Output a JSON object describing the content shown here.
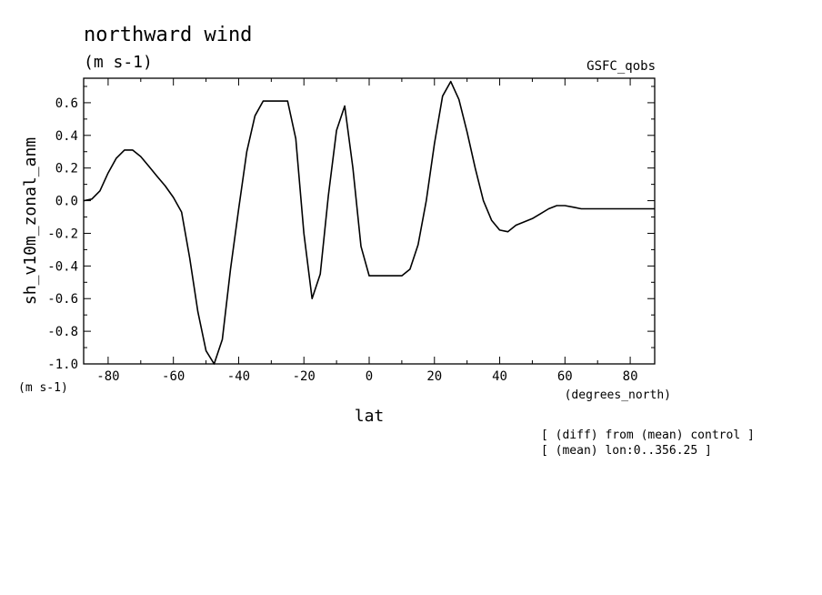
{
  "chart_data": {
    "type": "line",
    "title": "northward wind",
    "subtitle": "(m s-1)",
    "dataset_label": "GSFC_qobs",
    "xlabel": "lat",
    "xunits": "(degrees_north)",
    "ylabel": "sh_v10m_zonal_anm",
    "yunits": "(m s-1)",
    "xlim": [
      -87.5,
      87.5
    ],
    "ylim": [
      -1.0,
      0.75
    ],
    "xticks": [
      -80,
      -60,
      -40,
      -20,
      0,
      20,
      40,
      60,
      80
    ],
    "xtick_labels": [
      "-80",
      "-60",
      "-40",
      "-20",
      "0",
      "20",
      "40",
      "60",
      "80"
    ],
    "yticks": [
      -1.0,
      -0.8,
      -0.6,
      -0.4,
      -0.2,
      0.0,
      0.2,
      0.4,
      0.6
    ],
    "ytick_labels": [
      "-1.0",
      "-0.8",
      "-0.6",
      "-0.4",
      "-0.2",
      "0.0",
      "0.2",
      "0.4",
      "0.6"
    ],
    "grid": false,
    "series": [
      {
        "x": [
          -87.5,
          -85,
          -82.5,
          -80,
          -77.5,
          -75,
          -72.5,
          -70,
          -67.5,
          -65,
          -62.5,
          -60,
          -57.5,
          -55,
          -52.5,
          -50,
          -47.5,
          -45,
          -42.5,
          -40,
          -37.5,
          -35,
          -32.5,
          -30,
          -27.5,
          -25,
          -22.5,
          -20,
          -17.5,
          -15,
          -12.5,
          -10,
          -7.5,
          -5,
          -2.5,
          0,
          2.5,
          5,
          7.5,
          10,
          12.5,
          15,
          17.5,
          20,
          22.5,
          25,
          27.5,
          30,
          32.5,
          35,
          37.5,
          40,
          42.5,
          45,
          47.5,
          50,
          52.5,
          55,
          57.5,
          60,
          62.5,
          65,
          67.5,
          70,
          72.5,
          75,
          77.5,
          80,
          82.5,
          85,
          87.5
        ],
        "values": [
          0.0,
          0.01,
          0.06,
          0.17,
          0.26,
          0.31,
          0.31,
          0.27,
          0.21,
          0.15,
          0.09,
          0.02,
          -0.07,
          -0.35,
          -0.68,
          -0.92,
          -1.0,
          -0.85,
          -0.42,
          -0.05,
          0.3,
          0.52,
          0.61,
          0.61,
          0.61,
          0.61,
          0.38,
          -0.2,
          -0.6,
          -0.45,
          0.03,
          0.43,
          0.58,
          0.2,
          -0.28,
          -0.46,
          -0.46,
          -0.46,
          -0.46,
          -0.46,
          -0.42,
          -0.27,
          0.0,
          0.35,
          0.64,
          0.73,
          0.62,
          0.42,
          0.2,
          0.0,
          -0.12,
          -0.18,
          -0.19,
          -0.15,
          -0.13,
          -0.11,
          -0.08,
          -0.05,
          -0.03,
          -0.03,
          -0.04,
          -0.05,
          -0.05,
          -0.05,
          -0.05,
          -0.05,
          -0.05,
          -0.05,
          -0.05,
          -0.05,
          -0.05
        ]
      }
    ]
  },
  "annotations": [
    "[ (diff) from (mean) control ]",
    "[ (mean) lon:0..356.25 ]"
  ]
}
